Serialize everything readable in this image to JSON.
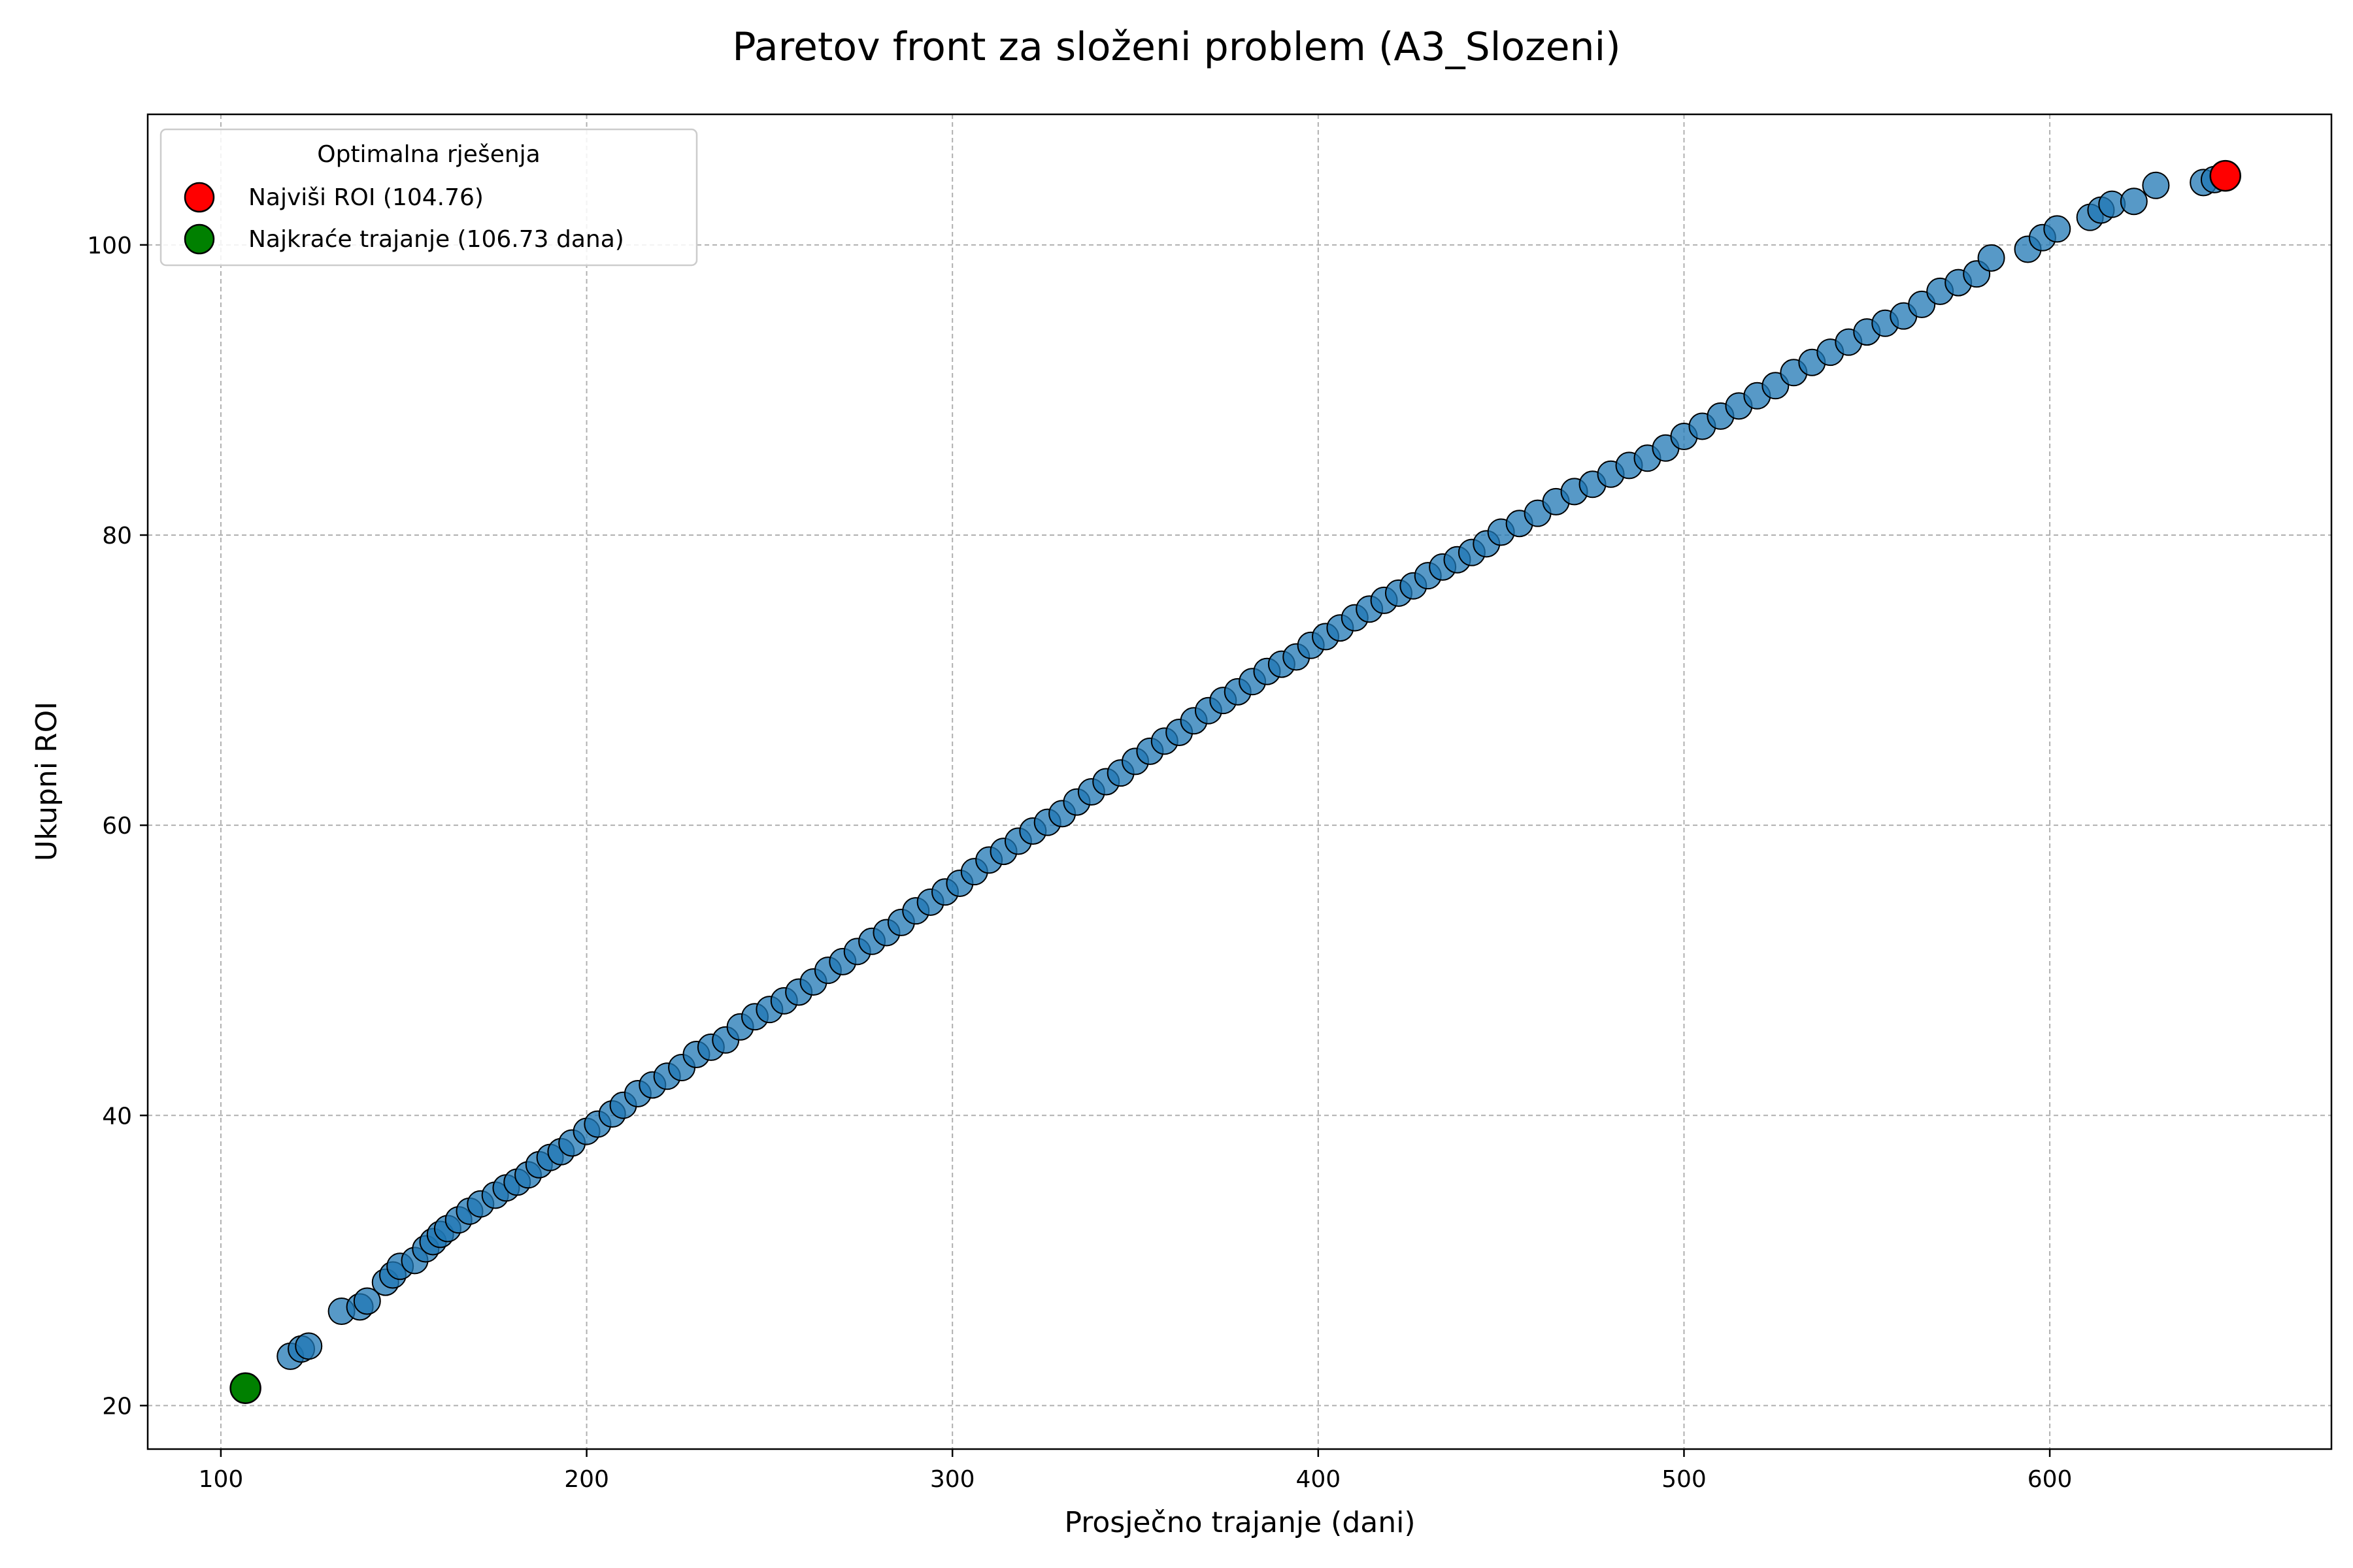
{
  "chart_data": {
    "type": "scatter",
    "title": "Paretov front za složeni problem (A3_Slozeni)",
    "xlabel": "Prosječno trajanje (dani)",
    "ylabel": "Ukupni ROI",
    "xlim": [
      80,
      677
    ],
    "ylim": [
      17,
      109
    ],
    "xticks": [
      100,
      200,
      300,
      400,
      500,
      600
    ],
    "yticks": [
      20,
      40,
      60,
      80,
      100
    ],
    "grid": true,
    "legend": {
      "title": "Optimalna rješenja",
      "placement": "top-left",
      "entries": [
        {
          "label": "Najviši ROI (104.76)",
          "color": "#ff0000"
        },
        {
          "label": "Najkraće trajanje (106.73 dana)",
          "color": "#008000"
        }
      ]
    },
    "series": [
      {
        "role": "front",
        "color": "#1f77b4",
        "x": [
          119,
          122,
          124,
          133,
          138,
          140,
          145,
          147,
          149,
          153,
          156,
          158,
          160,
          162,
          165,
          168,
          171,
          175,
          178,
          181,
          184,
          187,
          190,
          193,
          196,
          200,
          203,
          207,
          210,
          214,
          218,
          222,
          226,
          230,
          234,
          238,
          242,
          246,
          250,
          254,
          258,
          262,
          266,
          270,
          274,
          278,
          282,
          286,
          290,
          294,
          298,
          302,
          306,
          310,
          314,
          318,
          322,
          326,
          330,
          334,
          338,
          342,
          346,
          350,
          354,
          358,
          362,
          366,
          370,
          374,
          378,
          382,
          386,
          390,
          394,
          398,
          402,
          406,
          410,
          414,
          418,
          422,
          426,
          430,
          434,
          438,
          442,
          446,
          450,
          455,
          460,
          465,
          470,
          475,
          480,
          485,
          490,
          495,
          500,
          505,
          510,
          515,
          520,
          525,
          530,
          535,
          540,
          545,
          550,
          555,
          560,
          565,
          570,
          575,
          580,
          584,
          594,
          598,
          602,
          611,
          614,
          617,
          623,
          629,
          642,
          645
        ],
        "y": [
          23.4,
          23.9,
          24.1,
          26.5,
          26.8,
          27.2,
          28.5,
          29.0,
          29.6,
          30.0,
          30.8,
          31.3,
          31.8,
          32.2,
          32.8,
          33.4,
          33.9,
          34.5,
          35.0,
          35.4,
          35.9,
          36.6,
          37.1,
          37.5,
          38.1,
          38.9,
          39.4,
          40.1,
          40.7,
          41.5,
          42.1,
          42.7,
          43.3,
          44.2,
          44.7,
          45.2,
          46.1,
          46.8,
          47.3,
          47.9,
          48.5,
          49.2,
          50.0,
          50.6,
          51.3,
          52.0,
          52.6,
          53.3,
          54.1,
          54.7,
          55.4,
          56.0,
          56.8,
          57.6,
          58.2,
          58.9,
          59.6,
          60.2,
          60.8,
          61.6,
          62.3,
          63.0,
          63.6,
          64.4,
          65.1,
          65.8,
          66.4,
          67.2,
          67.9,
          68.6,
          69.2,
          69.9,
          70.6,
          71.1,
          71.6,
          72.4,
          73.0,
          73.6,
          74.3,
          74.9,
          75.5,
          76.0,
          76.5,
          77.2,
          77.8,
          78.3,
          78.8,
          79.4,
          80.2,
          80.8,
          81.5,
          82.3,
          83.0,
          83.5,
          84.2,
          84.8,
          85.3,
          86.0,
          86.8,
          87.5,
          88.2,
          88.9,
          89.6,
          90.3,
          91.2,
          91.9,
          92.6,
          93.3,
          94.0,
          94.6,
          95.1,
          95.9,
          96.8,
          97.4,
          98.0,
          99.1,
          99.7,
          100.5,
          101.1,
          101.9,
          102.4,
          102.8,
          103.0,
          104.1,
          104.3,
          104.5
        ]
      },
      {
        "role": "highest-roi",
        "name": "Najviši ROI (104.76)",
        "color": "#ff0000",
        "x": [
          648
        ],
        "y": [
          104.76
        ]
      },
      {
        "role": "shortest-duration",
        "name": "Najkraće trajanje (106.73 dana)",
        "color": "#008000",
        "x": [
          106.73
        ],
        "y": [
          21.2
        ]
      }
    ]
  }
}
